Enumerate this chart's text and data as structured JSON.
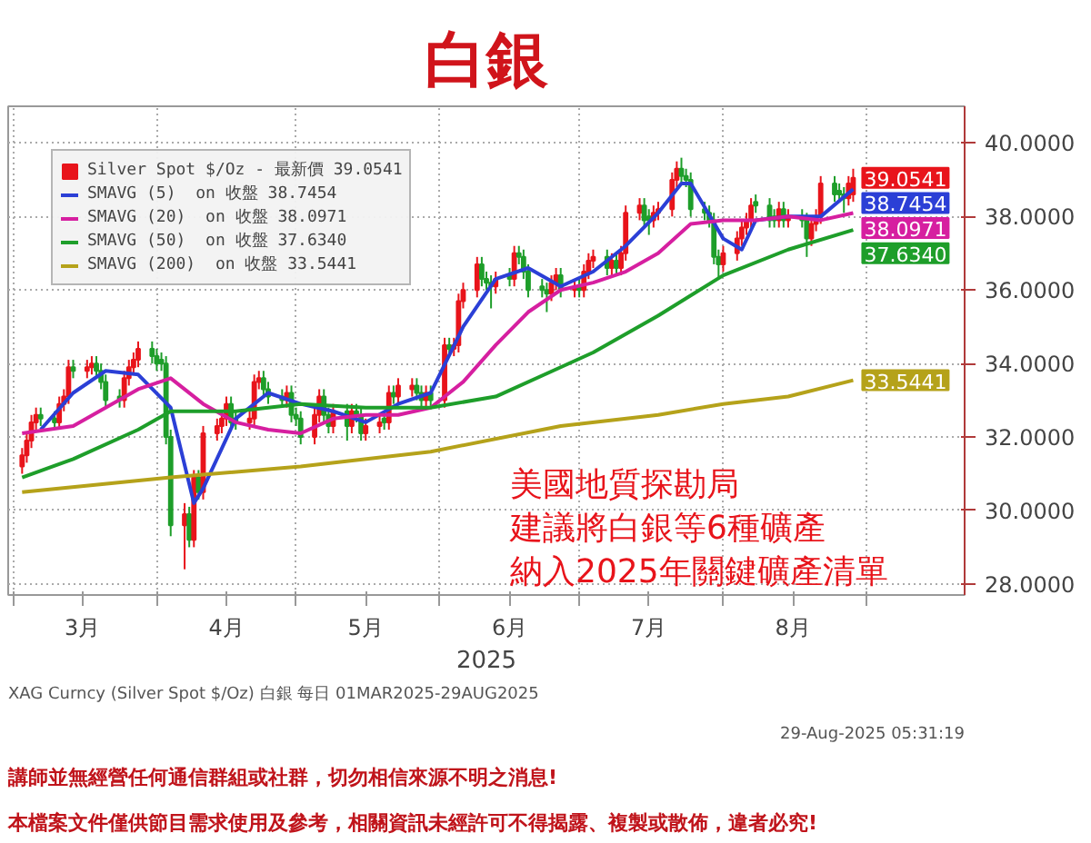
{
  "chart_data": {
    "type": "candlestick",
    "title": "白銀",
    "xlabel": "2025",
    "xlim": [
      "2025-02-28",
      "2025-09-22"
    ],
    "xticks": [
      {
        "value": "2025-03-01",
        "label": null
      },
      {
        "value": "2025-03-16",
        "label": "3月"
      },
      {
        "value": "2025-04-01",
        "label": null
      },
      {
        "value": "2025-04-16",
        "label": "4月"
      },
      {
        "value": "2025-05-01",
        "label": null
      },
      {
        "value": "2025-05-16",
        "label": "5月"
      },
      {
        "value": "2025-06-01",
        "label": null
      },
      {
        "value": "2025-06-16",
        "label": "6月"
      },
      {
        "value": "2025-07-01",
        "label": null
      },
      {
        "value": "2025-07-16",
        "label": "7月"
      },
      {
        "value": "2025-08-01",
        "label": null
      },
      {
        "value": "2025-08-16",
        "label": "8月"
      },
      {
        "value": "2025-09-01",
        "label": null
      }
    ],
    "ylim": [
      27.7,
      41.0
    ],
    "yticks": [
      {
        "value": 28,
        "label": "28.0000"
      },
      {
        "value": 30,
        "label": "30.0000"
      },
      {
        "value": 32,
        "label": "32.0000"
      },
      {
        "value": 34,
        "label": "34.0000"
      },
      {
        "value": 36,
        "label": "36.0000"
      },
      {
        "value": 38,
        "label": "38.0000"
      },
      {
        "value": 40,
        "label": "40.0000"
      }
    ],
    "grid": true,
    "legend": "top left",
    "series": [
      {
        "name": "Silver Spot $/Oz - 最新價 39.0541",
        "color": "#e8141b",
        "colors": [
          "#e8141b",
          "#e8141b",
          "#e8141b",
          "#e8141b",
          "#1e9e2a",
          "#1e9e2a",
          "#e8141b",
          "#e8141b",
          "#e8141b",
          "#1e9e2a",
          "#e8141b",
          "#e8141b",
          "#1e9e2a",
          "#1e9e2a",
          "#1e9e2a",
          "#1e9e2a",
          "#e8141b",
          "#e8141b",
          "#e8141b",
          "#e8141b",
          "#1e9e2a",
          "#1e9e2a",
          "#1e9e2a",
          "#1e9e2a",
          "#1e9e2a",
          "#e8141b",
          "#1e9e2a",
          "#e8141b",
          "#1e9e2a",
          "#e8141b",
          "#e8141b",
          "#e8141b",
          "#e8141b",
          "#1e9e2a",
          "#1e9e2a",
          "#e8141b",
          "#e8141b",
          "#e8141b",
          "#1e9e2a",
          "#1e9e2a",
          "#1e9e2a",
          "#e8141b",
          "#1e9e2a",
          "#1e9e2a",
          "#1e9e2a",
          "#e8141b",
          "#e8141b",
          "#1e9e2a",
          "#1e9e2a",
          "#e8141b",
          "#1e9e2a",
          "#e8141b",
          "#1e9e2a",
          "#1e9e2a",
          "#e8141b",
          "#e8141b",
          "#1e9e2a",
          "#e8141b",
          "#1e9e2a",
          "#e8141b",
          "#e8141b",
          "#1e9e2a",
          "#1e9e2a",
          "#e8141b",
          "#1e9e2a",
          "#e8141b",
          "#1e9e2a",
          "#e8141b",
          "#e8141b",
          "#e8141b",
          "#e8141b",
          "#1e9e2a",
          "#1e9e2a",
          "#1e9e2a",
          "#e8141b",
          "#1e9e2a",
          "#e8141b",
          "#1e9e2a",
          "#1e9e2a",
          "#1e9e2a",
          "#1e9e2a",
          "#1e9e2a",
          "#e8141b",
          "#e8141b",
          "#1e9e2a",
          "#e8141b",
          "#1e9e2a",
          "#e8141b",
          "#e8141b",
          "#e8141b",
          "#1e9e2a",
          "#e8141b",
          "#1e9e2a",
          "#e8141b",
          "#e8141b",
          "#e8141b",
          "#1e9e2a",
          "#1e9e2a",
          "#e8141b",
          "#e8141b",
          "#e8141b",
          "#e8141b",
          "#1e9e2a",
          "#1e9e2a",
          "#1e9e2a",
          "#1e9e2a",
          "#1e9e2a",
          "#1e9e2a",
          "#1e9e2a",
          "#e8141b",
          "#e8141b",
          "#e8141b",
          "#e8141b",
          "#e8141b",
          "#1e9e2a",
          "#1e9e2a",
          "#1e9e2a",
          "#e8141b",
          "#1e9e2a",
          "#e8141b",
          "#1e9e2a",
          "#1e9e2a",
          "#e8141b",
          "#e8141b",
          "#e8141b",
          "#1e9e2a",
          "#1e9e2a",
          "#1e9e2a",
          "#e8141b",
          "#e8141b"
        ],
        "value_labels": [
          null,
          null,
          null,
          null,
          null,
          null,
          null,
          null,
          null,
          null,
          null,
          null,
          null,
          null,
          null,
          null,
          null,
          null,
          null,
          null,
          null,
          null,
          null,
          null,
          null,
          null,
          null,
          null,
          null,
          null,
          null,
          null,
          null,
          null,
          null,
          null,
          null,
          null,
          null,
          null,
          null,
          null,
          null,
          null,
          null,
          null,
          null,
          null,
          null,
          null,
          null,
          null,
          null,
          null,
          null,
          null,
          null,
          null,
          null,
          null,
          null,
          null,
          null,
          null,
          null,
          null,
          null,
          null,
          null,
          null,
          null,
          null,
          null,
          null,
          null,
          null,
          null,
          null,
          null,
          null,
          null,
          null,
          null,
          null,
          null,
          null,
          null,
          null,
          null,
          null,
          null,
          null,
          null,
          null,
          null,
          null,
          null,
          null,
          null,
          null,
          null,
          null,
          null,
          null,
          null,
          null,
          null,
          null,
          null,
          null,
          null,
          null,
          null,
          null,
          null,
          null,
          null,
          null,
          null,
          null,
          null,
          null,
          null,
          null,
          null,
          null,
          null,
          null,
          null,
          "39.0541"
        ],
        "x": [
          "2025-03-03",
          "2025-03-04",
          "2025-03-05",
          "2025-03-06",
          "2025-03-07",
          "2025-03-10",
          "2025-03-11",
          "2025-03-12",
          "2025-03-13",
          "2025-03-14",
          "2025-03-17",
          "2025-03-18",
          "2025-03-19",
          "2025-03-20",
          "2025-03-21",
          "2025-03-24",
          "2025-03-25",
          "2025-03-26",
          "2025-03-27",
          "2025-03-28",
          "2025-03-31",
          "2025-04-01",
          "2025-04-02",
          "2025-04-03",
          "2025-04-04",
          "2025-04-07",
          "2025-04-08",
          "2025-04-09",
          "2025-04-10",
          "2025-04-11",
          "2025-04-14",
          "2025-04-15",
          "2025-04-16",
          "2025-04-17",
          "2025-04-18",
          "2025-04-21",
          "2025-04-22",
          "2025-04-23",
          "2025-04-24",
          "2025-04-25",
          "2025-04-28",
          "2025-04-29",
          "2025-04-30",
          "2025-05-01",
          "2025-05-02",
          "2025-05-05",
          "2025-05-06",
          "2025-05-07",
          "2025-05-08",
          "2025-05-09",
          "2025-05-12",
          "2025-05-13",
          "2025-05-14",
          "2025-05-15",
          "2025-05-16",
          "2025-05-19",
          "2025-05-20",
          "2025-05-21",
          "2025-05-22",
          "2025-05-23",
          "2025-05-26",
          "2025-05-27",
          "2025-05-28",
          "2025-05-29",
          "2025-05-30",
          "2025-06-02",
          "2025-06-03",
          "2025-06-04",
          "2025-06-05",
          "2025-06-06",
          "2025-06-09",
          "2025-06-10",
          "2025-06-11",
          "2025-06-12",
          "2025-06-13",
          "2025-06-16",
          "2025-06-17",
          "2025-06-18",
          "2025-06-19",
          "2025-06-20",
          "2025-06-23",
          "2025-06-24",
          "2025-06-25",
          "2025-06-26",
          "2025-06-27",
          "2025-06-30",
          "2025-07-01",
          "2025-07-02",
          "2025-07-03",
          "2025-07-04",
          "2025-07-07",
          "2025-07-08",
          "2025-07-09",
          "2025-07-10",
          "2025-07-11",
          "2025-07-14",
          "2025-07-15",
          "2025-07-16",
          "2025-07-17",
          "2025-07-18",
          "2025-07-21",
          "2025-07-22",
          "2025-07-23",
          "2025-07-24",
          "2025-07-25",
          "2025-07-28",
          "2025-07-29",
          "2025-07-30",
          "2025-07-31",
          "2025-08-01",
          "2025-08-04",
          "2025-08-05",
          "2025-08-06",
          "2025-08-07",
          "2025-08-08",
          "2025-08-11",
          "2025-08-12",
          "2025-08-13",
          "2025-08-14",
          "2025-08-15",
          "2025-08-18",
          "2025-08-19",
          "2025-08-20",
          "2025-08-21",
          "2025-08-22",
          "2025-08-25",
          "2025-08-26",
          "2025-08-27",
          "2025-08-28",
          "2025-08-29"
        ],
        "ohlc": [
          [
            31.2,
            31.7,
            31.0,
            31.5
          ],
          [
            31.5,
            32.1,
            31.3,
            31.9
          ],
          [
            31.9,
            32.6,
            31.7,
            32.4
          ],
          [
            32.4,
            32.8,
            32.2,
            32.6
          ],
          [
            32.6,
            32.8,
            32.3,
            32.5
          ],
          [
            32.5,
            32.7,
            32.2,
            32.4
          ],
          [
            32.4,
            33.1,
            32.2,
            32.9
          ],
          [
            32.9,
            33.3,
            32.7,
            33.1
          ],
          [
            33.1,
            34.1,
            32.9,
            33.9
          ],
          [
            33.9,
            34.1,
            33.6,
            33.8
          ],
          [
            33.8,
            34.1,
            33.6,
            33.9
          ],
          [
            33.9,
            34.2,
            33.7,
            34.0
          ],
          [
            34.0,
            34.2,
            33.6,
            33.8
          ],
          [
            33.8,
            34.0,
            33.3,
            33.5
          ],
          [
            33.5,
            33.7,
            32.8,
            33.0
          ],
          [
            33.1,
            33.3,
            32.8,
            33.0
          ],
          [
            33.0,
            33.8,
            32.8,
            33.6
          ],
          [
            33.6,
            34.1,
            33.4,
            33.9
          ],
          [
            33.9,
            34.3,
            33.7,
            34.1
          ],
          [
            34.1,
            34.6,
            33.9,
            34.4
          ],
          [
            34.4,
            34.6,
            34.0,
            34.2
          ],
          [
            34.2,
            34.4,
            33.8,
            34.0
          ],
          [
            34.1,
            34.3,
            33.8,
            34.0
          ],
          [
            34.0,
            34.2,
            31.8,
            32.0
          ],
          [
            32.0,
            32.2,
            29.3,
            29.6
          ],
          [
            29.6,
            30.2,
            28.4,
            29.9
          ],
          [
            29.9,
            30.1,
            29.0,
            29.2
          ],
          [
            29.2,
            31.1,
            29.0,
            30.9
          ],
          [
            30.9,
            31.1,
            30.3,
            30.5
          ],
          [
            30.5,
            32.3,
            30.3,
            32.1
          ],
          [
            32.1,
            32.5,
            31.9,
            32.3
          ],
          [
            32.3,
            32.7,
            32.1,
            32.5
          ],
          [
            32.5,
            33.1,
            32.3,
            32.9
          ],
          [
            32.9,
            33.1,
            32.2,
            32.4
          ],
          [
            32.5,
            32.7,
            32.2,
            32.4
          ],
          [
            32.4,
            32.7,
            32.2,
            32.5
          ],
          [
            32.5,
            33.7,
            32.3,
            33.5
          ],
          [
            33.5,
            33.8,
            33.3,
            33.6
          ],
          [
            33.6,
            33.8,
            33.1,
            33.3
          ],
          [
            33.3,
            33.5,
            32.9,
            33.1
          ],
          [
            33.1,
            33.3,
            32.8,
            33.0
          ],
          [
            33.0,
            33.4,
            32.8,
            33.2
          ],
          [
            33.2,
            33.4,
            32.4,
            32.6
          ],
          [
            32.6,
            32.8,
            32.3,
            32.5
          ],
          [
            32.5,
            32.7,
            31.8,
            32.0
          ],
          [
            32.0,
            32.8,
            31.8,
            32.6
          ],
          [
            32.6,
            33.3,
            32.4,
            33.1
          ],
          [
            33.1,
            33.3,
            32.4,
            32.6
          ],
          [
            32.6,
            32.8,
            32.1,
            32.3
          ],
          [
            32.3,
            32.9,
            32.1,
            32.7
          ],
          [
            32.7,
            32.9,
            31.9,
            32.3
          ],
          [
            32.3,
            32.9,
            32.1,
            32.7
          ],
          [
            32.7,
            32.9,
            32.4,
            32.6
          ],
          [
            32.6,
            32.8,
            31.9,
            32.1
          ],
          [
            32.1,
            32.5,
            31.9,
            32.3
          ],
          [
            32.3,
            32.6,
            32.1,
            32.4
          ],
          [
            32.5,
            32.7,
            32.2,
            32.4
          ],
          [
            32.4,
            33.4,
            32.2,
            33.2
          ],
          [
            33.2,
            33.4,
            32.9,
            33.1
          ],
          [
            33.1,
            33.6,
            32.9,
            33.4
          ],
          [
            33.3,
            33.6,
            33.1,
            33.4
          ],
          [
            33.4,
            33.6,
            33.0,
            33.2
          ],
          [
            33.2,
            33.4,
            32.8,
            33.0
          ],
          [
            33.0,
            33.4,
            32.8,
            33.2
          ],
          [
            33.2,
            33.4,
            32.8,
            33.0
          ],
          [
            33.0,
            34.7,
            32.8,
            34.5
          ],
          [
            34.5,
            34.7,
            34.2,
            34.4
          ],
          [
            34.4,
            34.7,
            34.2,
            34.5
          ],
          [
            34.5,
            35.9,
            34.3,
            35.7
          ],
          [
            35.7,
            36.2,
            35.5,
            36.0
          ],
          [
            36.0,
            36.9,
            35.8,
            36.7
          ],
          [
            36.7,
            36.9,
            36.1,
            36.3
          ],
          [
            36.3,
            36.5,
            36.0,
            36.2
          ],
          [
            36.2,
            36.4,
            35.5,
            36.1
          ],
          [
            36.1,
            36.5,
            35.9,
            36.3
          ],
          [
            36.4,
            36.6,
            36.1,
            36.3
          ],
          [
            36.3,
            37.2,
            36.1,
            37.0
          ],
          [
            37.0,
            37.2,
            36.7,
            36.9
          ],
          [
            36.9,
            37.1,
            36.3,
            36.5
          ],
          [
            36.5,
            36.7,
            35.8,
            36.0
          ],
          [
            36.1,
            36.3,
            35.8,
            36.0
          ],
          [
            36.0,
            36.2,
            35.4,
            35.9
          ],
          [
            35.9,
            36.4,
            35.7,
            36.2
          ],
          [
            36.2,
            36.6,
            36.0,
            36.4
          ],
          [
            36.4,
            36.6,
            35.8,
            36.0
          ],
          [
            36.0,
            36.3,
            35.8,
            36.1
          ],
          [
            36.1,
            36.3,
            35.8,
            36.0
          ],
          [
            36.0,
            36.7,
            35.8,
            36.5
          ],
          [
            36.5,
            37.0,
            36.3,
            36.8
          ],
          [
            36.8,
            37.1,
            36.6,
            36.9
          ],
          [
            36.9,
            37.1,
            36.4,
            36.6
          ],
          [
            36.6,
            37.0,
            36.4,
            36.8
          ],
          [
            36.8,
            37.0,
            36.4,
            36.6
          ],
          [
            36.6,
            37.2,
            36.4,
            37.0
          ],
          [
            37.0,
            38.3,
            36.8,
            38.1
          ],
          [
            38.1,
            38.5,
            37.9,
            38.3
          ],
          [
            38.3,
            38.5,
            37.7,
            37.9
          ],
          [
            38.0,
            38.2,
            37.5,
            37.9
          ],
          [
            37.9,
            38.3,
            37.7,
            38.1
          ],
          [
            38.1,
            38.4,
            37.9,
            38.2
          ],
          [
            38.2,
            39.2,
            38.0,
            39.0
          ],
          [
            39.0,
            39.5,
            38.8,
            39.3
          ],
          [
            39.3,
            39.6,
            38.9,
            39.1
          ],
          [
            39.1,
            39.3,
            38.8,
            39.0
          ],
          [
            39.0,
            39.2,
            38.0,
            38.2
          ],
          [
            38.2,
            38.4,
            37.9,
            38.1
          ],
          [
            38.1,
            38.3,
            37.7,
            37.9
          ],
          [
            37.9,
            38.1,
            36.7,
            36.9
          ],
          [
            36.9,
            37.1,
            36.3,
            36.7
          ],
          [
            36.7,
            37.2,
            36.5,
            37.0
          ],
          [
            37.0,
            37.6,
            36.8,
            37.4
          ],
          [
            37.4,
            37.9,
            37.2,
            37.7
          ],
          [
            37.7,
            38.1,
            37.5,
            37.9
          ],
          [
            37.9,
            38.5,
            37.7,
            38.3
          ],
          [
            38.4,
            38.6,
            38.1,
            38.3
          ],
          [
            38.3,
            38.5,
            37.7,
            37.9
          ],
          [
            38.0,
            38.2,
            37.7,
            37.9
          ],
          [
            37.9,
            38.4,
            37.7,
            38.2
          ],
          [
            38.2,
            38.4,
            37.7,
            37.9
          ],
          [
            37.9,
            38.2,
            37.7,
            38.0
          ],
          [
            38.0,
            38.2,
            37.7,
            37.9
          ],
          [
            37.9,
            38.1,
            36.9,
            37.4
          ],
          [
            37.4,
            38.0,
            37.2,
            37.8
          ],
          [
            37.8,
            38.2,
            37.6,
            38.0
          ],
          [
            38.0,
            39.1,
            37.8,
            38.9
          ],
          [
            38.9,
            39.1,
            38.4,
            38.6
          ],
          [
            38.7,
            38.9,
            38.4,
            38.6
          ],
          [
            38.6,
            38.8,
            38.1,
            38.5
          ],
          [
            38.5,
            39.1,
            38.3,
            38.9
          ],
          [
            38.6,
            39.3,
            38.4,
            39.0541
          ]
        ]
      },
      {
        "type": "line",
        "name": "SMAVG (5)  on 收盤 38.7454",
        "color": "#2b3fd6",
        "x": [
          "2025-03-07",
          "2025-03-14",
          "2025-03-21",
          "2025-03-28",
          "2025-04-04",
          "2025-04-09",
          "2025-04-11",
          "2025-04-18",
          "2025-04-25",
          "2025-05-02",
          "2025-05-09",
          "2025-05-16",
          "2025-05-23",
          "2025-05-30",
          "2025-06-06",
          "2025-06-13",
          "2025-06-20",
          "2025-06-27",
          "2025-07-04",
          "2025-07-11",
          "2025-07-18",
          "2025-07-23",
          "2025-07-25",
          "2025-08-01",
          "2025-08-05",
          "2025-08-08",
          "2025-08-15",
          "2025-08-22",
          "2025-08-29"
        ],
        "values": [
          32.2,
          33.2,
          33.8,
          33.7,
          32.8,
          30.2,
          30.6,
          32.5,
          33.2,
          32.9,
          32.7,
          32.4,
          32.9,
          33.2,
          35.0,
          36.3,
          36.6,
          36.1,
          36.5,
          37.2,
          38.1,
          38.9,
          38.9,
          37.4,
          37.1,
          37.9,
          38.0,
          38.0,
          38.7454
        ],
        "value_labels": [
          null,
          null,
          null,
          null,
          null,
          null,
          null,
          null,
          null,
          null,
          null,
          null,
          null,
          null,
          null,
          null,
          null,
          null,
          null,
          null,
          null,
          null,
          null,
          null,
          null,
          null,
          null,
          null,
          "38.7454"
        ]
      },
      {
        "type": "line",
        "name": "SMAVG (20)  on 收盤 38.0971",
        "color": "#d61fa0",
        "x": [
          "2025-03-03",
          "2025-03-14",
          "2025-03-21",
          "2025-03-28",
          "2025-04-04",
          "2025-04-11",
          "2025-04-18",
          "2025-04-25",
          "2025-05-02",
          "2025-05-09",
          "2025-05-16",
          "2025-05-23",
          "2025-05-30",
          "2025-06-06",
          "2025-06-13",
          "2025-06-20",
          "2025-06-27",
          "2025-07-04",
          "2025-07-11",
          "2025-07-18",
          "2025-07-25",
          "2025-08-01",
          "2025-08-08",
          "2025-08-15",
          "2025-08-22",
          "2025-08-29"
        ],
        "values": [
          32.1,
          32.3,
          32.8,
          33.3,
          33.6,
          32.9,
          32.4,
          32.2,
          32.1,
          32.5,
          32.6,
          32.6,
          32.8,
          33.5,
          34.5,
          35.4,
          36.0,
          36.2,
          36.5,
          37.0,
          37.8,
          37.9,
          37.9,
          38.0,
          37.9,
          38.0971
        ],
        "value_labels": [
          null,
          null,
          null,
          null,
          null,
          null,
          null,
          null,
          null,
          null,
          null,
          null,
          null,
          null,
          null,
          null,
          null,
          null,
          null,
          null,
          null,
          null,
          null,
          null,
          null,
          "38.0971"
        ]
      },
      {
        "type": "line",
        "name": "SMAVG (50)  on 收盤 37.6340",
        "color": "#1e9e2a",
        "x": [
          "2025-03-03",
          "2025-03-14",
          "2025-03-28",
          "2025-04-04",
          "2025-04-18",
          "2025-05-02",
          "2025-05-16",
          "2025-05-30",
          "2025-06-13",
          "2025-06-27",
          "2025-07-04",
          "2025-07-18",
          "2025-08-01",
          "2025-08-15",
          "2025-08-29"
        ],
        "values": [
          30.9,
          31.4,
          32.2,
          32.7,
          32.7,
          32.9,
          32.8,
          32.8,
          33.1,
          33.9,
          34.3,
          35.3,
          36.4,
          37.1,
          37.634
        ],
        "value_labels": [
          null,
          null,
          null,
          null,
          null,
          null,
          null,
          null,
          null,
          null,
          null,
          null,
          null,
          null,
          "37.6340"
        ]
      },
      {
        "type": "line",
        "name": "SMAVG (200)  on 收盤 33.5441",
        "color": "#b5a21a",
        "x": [
          "2025-03-03",
          "2025-04-04",
          "2025-05-02",
          "2025-05-30",
          "2025-06-27",
          "2025-07-18",
          "2025-08-01",
          "2025-08-15",
          "2025-08-29"
        ],
        "values": [
          30.5,
          30.9,
          31.2,
          31.6,
          32.3,
          32.6,
          32.9,
          33.1,
          33.5441
        ],
        "value_labels": [
          null,
          null,
          null,
          null,
          null,
          null,
          null,
          null,
          "33.5441"
        ]
      }
    ],
    "annotations": [
      "美國地質探勘局",
      "建議將白銀等6種礦產",
      "納入2025年關鍵礦產清單",
      "XAG Curncy (Silver Spot  $/Oz) 白銀   每日 01MAR2025-29AUG2025",
      "29-Aug-2025 05:31:19",
      "講師並無經營任何通信群組或社群，切勿相信來源不明之消息!",
      "本檔案文件僅供節目需求使用及參考，相關資訊未經許可不得揭露、複製或散佈，違者必究!"
    ]
  }
}
